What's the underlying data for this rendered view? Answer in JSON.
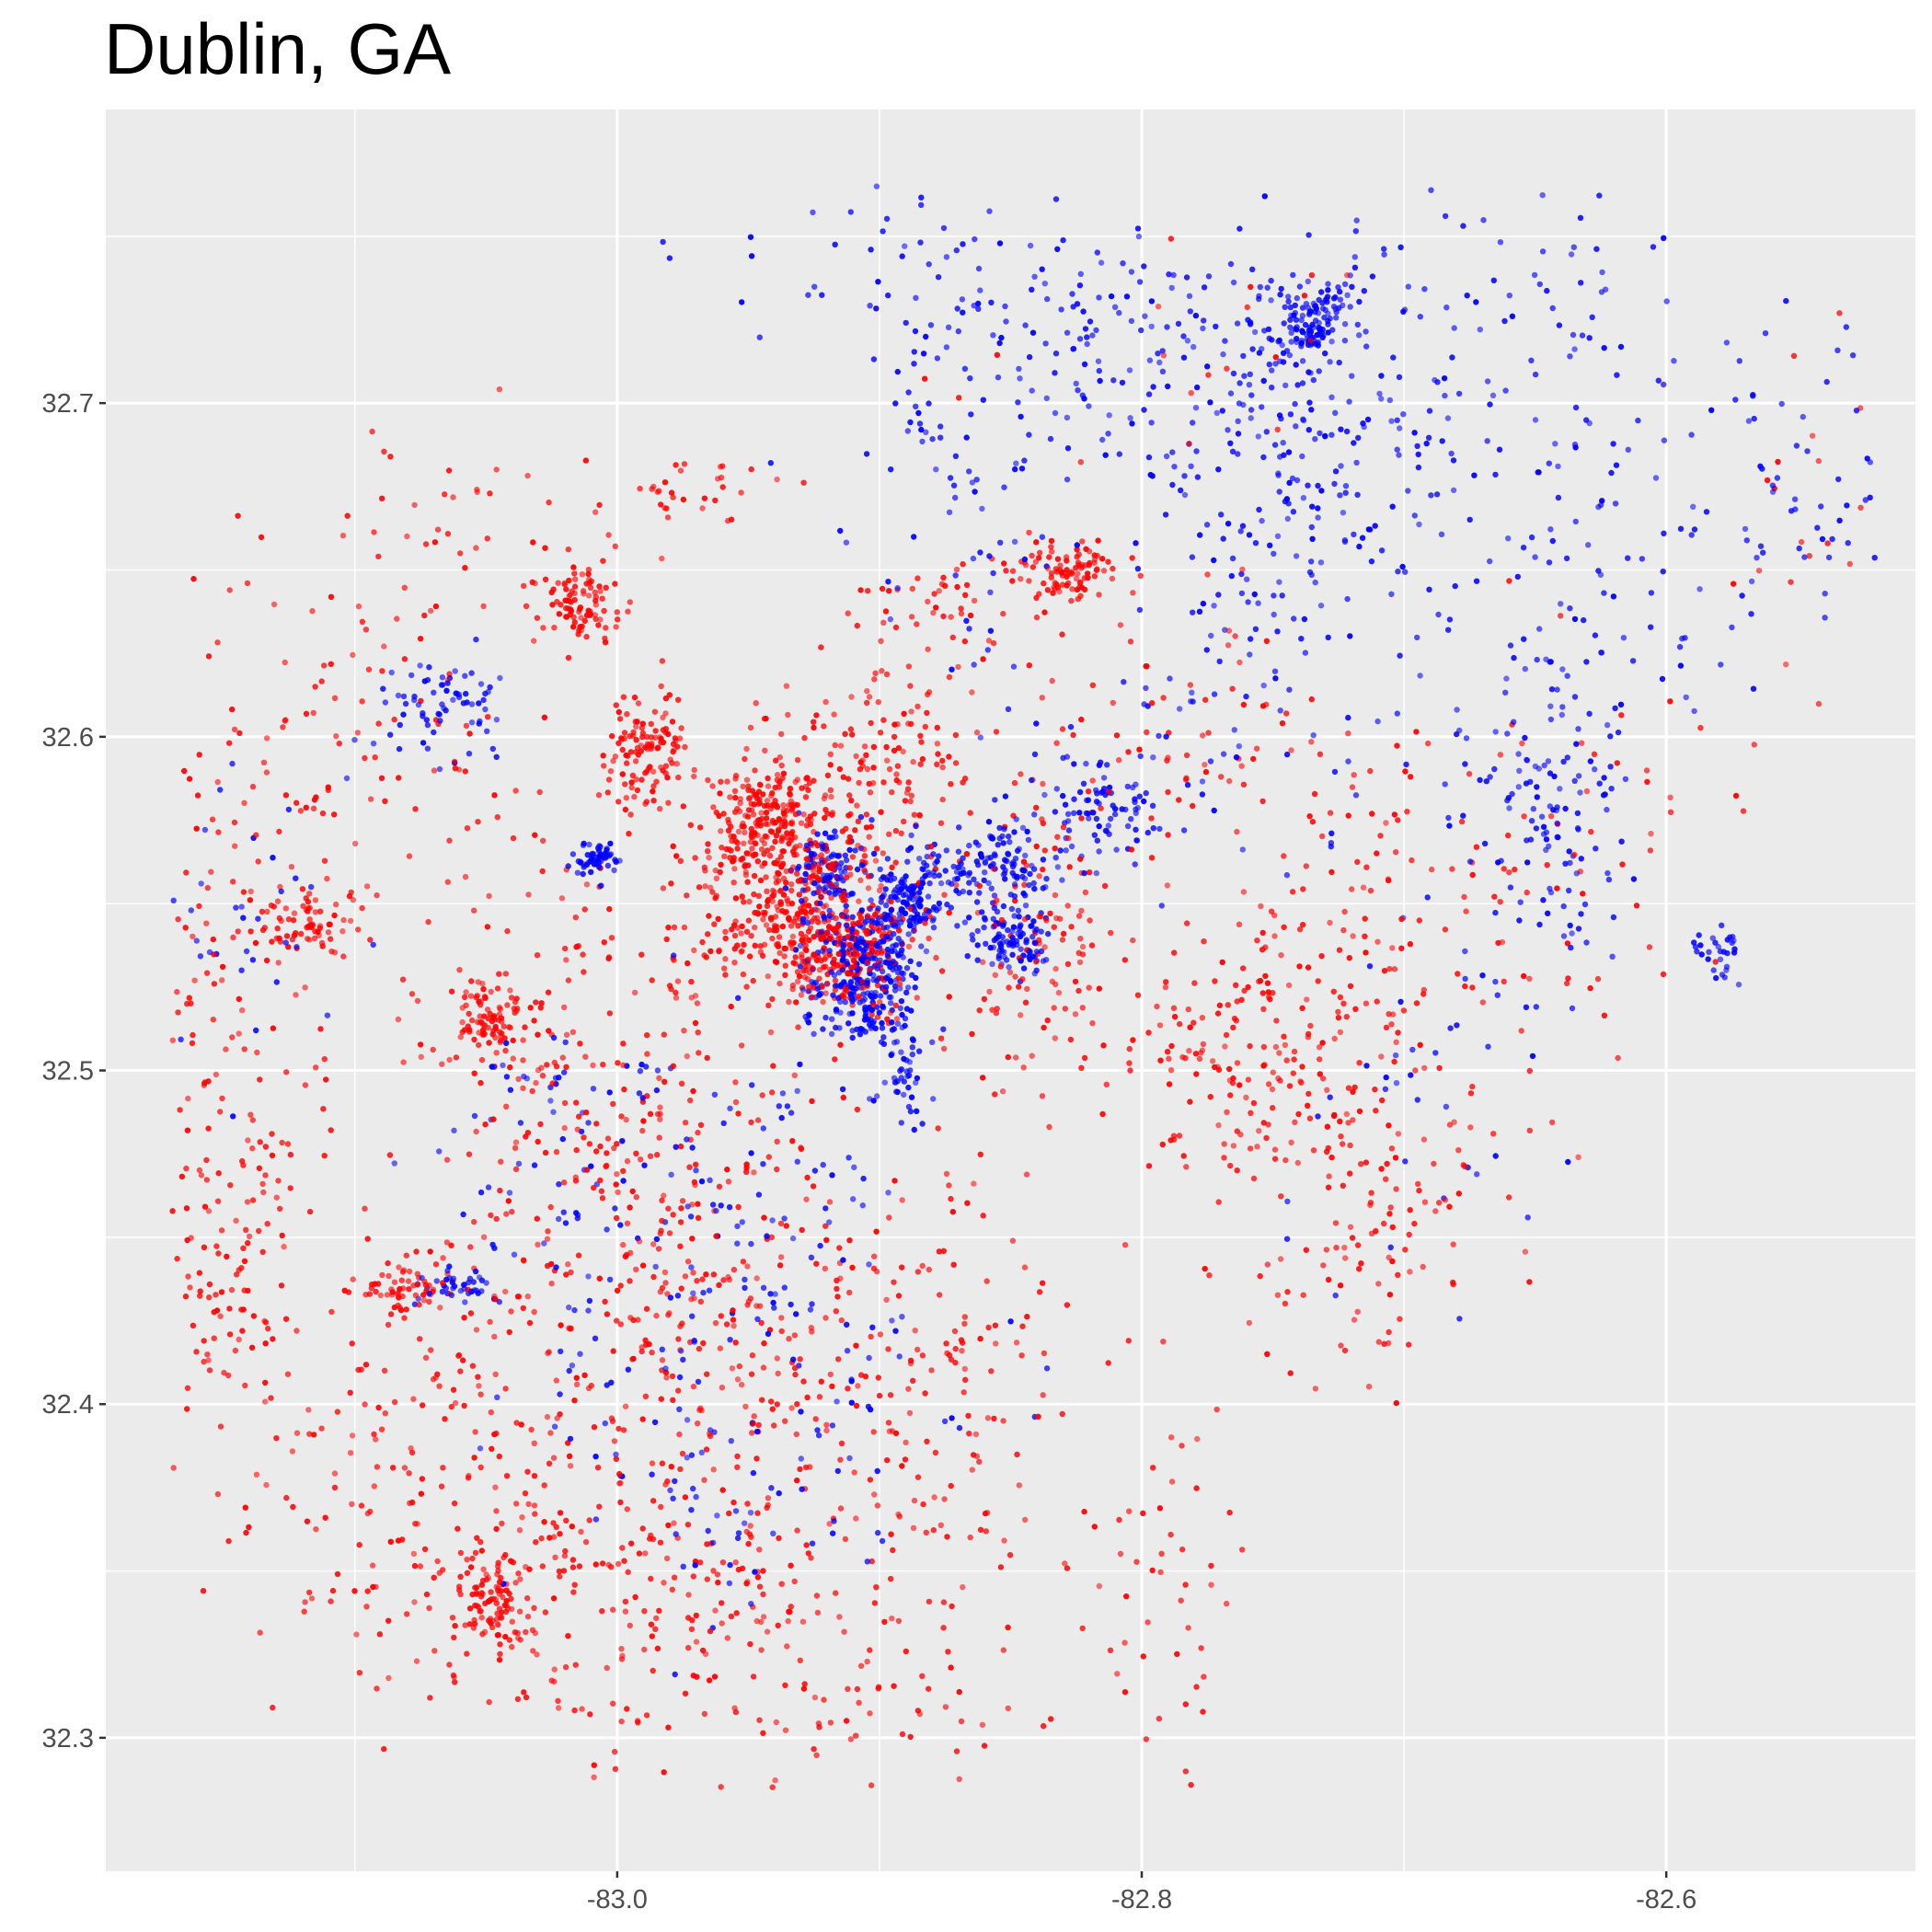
{
  "title": "Dublin, GA",
  "chart_data": {
    "type": "scatter",
    "title": "Dublin, GA",
    "xlabel": "",
    "ylabel": "",
    "xlim": [
      -83.195,
      -82.505
    ],
    "ylim": [
      32.26,
      32.788
    ],
    "x_ticks": [
      -83.0,
      -82.8,
      -82.6
    ],
    "x_tick_labels": [
      "-83.0",
      "-82.8",
      "-82.6"
    ],
    "y_ticks": [
      32.3,
      32.4,
      32.5,
      32.6,
      32.7
    ],
    "y_tick_labels": [
      "32.3",
      "32.4",
      "32.5",
      "32.6",
      "32.7"
    ],
    "grid": true,
    "legend": "none",
    "background_color": "#ebebeb",
    "grid_color": "#ffffff",
    "series": [
      {
        "color": "#ff0000",
        "clusters": [
          [
            -82.93,
            32.555,
            0.03,
            0.022,
            420
          ],
          [
            -82.945,
            32.575,
            0.012,
            0.014,
            160
          ],
          [
            -82.915,
            32.535,
            0.02,
            0.012,
            200
          ],
          [
            -82.99,
            32.595,
            0.012,
            0.012,
            120
          ],
          [
            -83.015,
            32.64,
            0.01,
            0.008,
            90
          ],
          [
            -83.12,
            32.545,
            0.015,
            0.008,
            80
          ],
          [
            -83.05,
            32.515,
            0.012,
            0.01,
            90
          ],
          [
            -83.0,
            32.49,
            0.06,
            0.06,
            300
          ],
          [
            -82.96,
            32.42,
            0.06,
            0.05,
            260
          ],
          [
            -82.98,
            32.35,
            0.07,
            0.04,
            260
          ],
          [
            -83.08,
            32.38,
            0.05,
            0.05,
            180
          ],
          [
            -83.15,
            32.45,
            0.03,
            0.04,
            140
          ],
          [
            -83.05,
            32.34,
            0.012,
            0.012,
            90
          ],
          [
            -83.08,
            32.435,
            0.012,
            0.006,
            60
          ],
          [
            -82.83,
            32.65,
            0.015,
            0.006,
            100
          ],
          [
            -82.84,
            32.54,
            0.03,
            0.03,
            120
          ],
          [
            -82.76,
            32.51,
            0.04,
            0.03,
            160
          ],
          [
            -82.72,
            32.46,
            0.04,
            0.04,
            140
          ],
          [
            -82.7,
            32.55,
            0.06,
            0.04,
            120
          ],
          [
            -83.1,
            32.6,
            0.06,
            0.04,
            120
          ],
          [
            -82.9,
            32.6,
            0.03,
            0.02,
            120
          ],
          [
            -82.87,
            32.4,
            0.04,
            0.06,
            120
          ],
          [
            -82.79,
            32.34,
            0.02,
            0.05,
            50
          ],
          [
            -82.78,
            32.6,
            0.04,
            0.03,
            80
          ],
          [
            -82.97,
            32.675,
            0.02,
            0.01,
            30
          ],
          [
            -83.16,
            32.52,
            0.02,
            0.04,
            60
          ],
          [
            -83.04,
            32.665,
            0.04,
            0.02,
            40
          ],
          [
            -82.88,
            32.64,
            0.02,
            0.01,
            40
          ],
          [
            -82.62,
            32.58,
            0.04,
            0.05,
            30
          ],
          [
            -82.55,
            32.68,
            0.04,
            0.04,
            20
          ],
          [
            -82.8,
            32.72,
            0.06,
            0.04,
            20
          ],
          [
            -82.9,
            32.3,
            0.05,
            0.02,
            40
          ]
        ]
      },
      {
        "color": "#0000ff",
        "clusters": [
          [
            -82.905,
            32.53,
            0.015,
            0.015,
            320
          ],
          [
            -82.89,
            32.55,
            0.008,
            0.01,
            120
          ],
          [
            -82.92,
            32.56,
            0.01,
            0.01,
            100
          ],
          [
            -82.86,
            32.56,
            0.02,
            0.008,
            140
          ],
          [
            -82.85,
            32.54,
            0.012,
            0.008,
            100
          ],
          [
            -82.82,
            32.58,
            0.02,
            0.012,
            90
          ],
          [
            -82.735,
            32.725,
            0.012,
            0.01,
            130
          ],
          [
            -82.74,
            32.69,
            0.04,
            0.04,
            180
          ],
          [
            -82.82,
            32.72,
            0.06,
            0.03,
            130
          ],
          [
            -82.66,
            32.7,
            0.05,
            0.05,
            130
          ],
          [
            -82.64,
            32.58,
            0.02,
            0.04,
            110
          ],
          [
            -82.58,
            32.535,
            0.006,
            0.006,
            30
          ],
          [
            -83.07,
            32.61,
            0.02,
            0.012,
            70
          ],
          [
            -83.006,
            32.563,
            0.006,
            0.004,
            60
          ],
          [
            -82.89,
            32.5,
            0.006,
            0.012,
            40
          ],
          [
            -83.06,
            32.435,
            0.01,
            0.004,
            40
          ],
          [
            -82.77,
            32.63,
            0.04,
            0.04,
            90
          ],
          [
            -82.87,
            32.68,
            0.03,
            0.04,
            80
          ],
          [
            -82.97,
            32.46,
            0.06,
            0.04,
            110
          ],
          [
            -82.95,
            32.39,
            0.06,
            0.04,
            110
          ],
          [
            -82.55,
            32.67,
            0.04,
            0.04,
            60
          ],
          [
            -82.88,
            32.74,
            0.06,
            0.02,
            50
          ],
          [
            -83.15,
            32.55,
            0.03,
            0.04,
            40
          ],
          [
            -83.02,
            32.48,
            0.03,
            0.03,
            40
          ],
          [
            -82.7,
            32.5,
            0.05,
            0.05,
            40
          ],
          [
            -82.6,
            32.65,
            0.04,
            0.03,
            40
          ],
          [
            -82.66,
            32.58,
            0.04,
            0.03,
            40
          ]
        ]
      }
    ]
  }
}
